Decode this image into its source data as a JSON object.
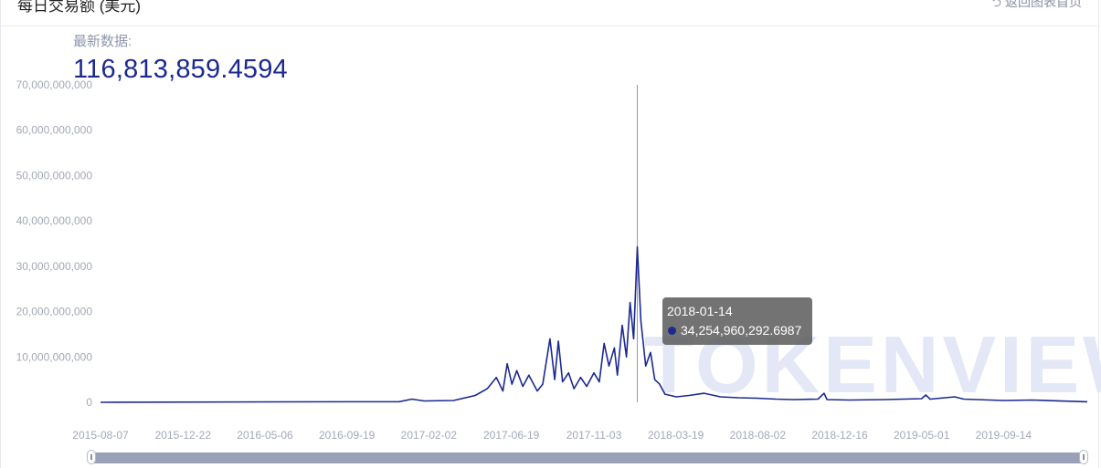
{
  "header": {
    "title": "每日交易额 (美元)",
    "back_label": "返回图表首页",
    "back_icon": "return-arrow-icon"
  },
  "latest": {
    "label": "最新数据:",
    "value": "116,813,859.4594"
  },
  "tooltip": {
    "date": "2018-01-14",
    "value": "34,254,960,292.6987",
    "marker_color": "#1b2a8f"
  },
  "watermark": "TOKENVIEW",
  "colors": {
    "line": "#1b2a8f",
    "tick_text": "#a3a8b8",
    "watermark": "#e3e7f6",
    "slider": "#9aa0b8"
  },
  "slider": {
    "start_fraction": 0,
    "end_fraction": 1
  },
  "chart_data": {
    "type": "line",
    "title": "",
    "xlabel": "",
    "ylabel": "",
    "ylim": [
      0,
      70000000000
    ],
    "xlim": [
      "2015-08-07",
      "2020-01-31"
    ],
    "grid": false,
    "legend": "none",
    "y_ticks": [
      "0",
      "10,000,000,000",
      "20,000,000,000",
      "30,000,000,000",
      "40,000,000,000",
      "50,000,000,000",
      "60,000,000,000",
      "70,000,000,000"
    ],
    "x_ticks": [
      "2015-08-07",
      "2015-12-22",
      "2016-05-06",
      "2016-09-19",
      "2017-02-02",
      "2017-06-19",
      "2017-11-03",
      "2018-03-19",
      "2018-08-02",
      "2018-12-16",
      "2019-05-01",
      "2019-09-14"
    ],
    "series": [
      {
        "points": [
          [
            "2015-08-07",
            0
          ],
          [
            "2016-06-01",
            100000000
          ],
          [
            "2016-12-15",
            150000000
          ],
          [
            "2017-01-05",
            700000000
          ],
          [
            "2017-01-25",
            300000000
          ],
          [
            "2017-03-15",
            400000000
          ],
          [
            "2017-04-20",
            1500000000
          ],
          [
            "2017-05-10",
            3000000000
          ],
          [
            "2017-05-25",
            5500000000
          ],
          [
            "2017-06-05",
            2500000000
          ],
          [
            "2017-06-12",
            8500000000
          ],
          [
            "2017-06-20",
            4000000000
          ],
          [
            "2017-06-28",
            7000000000
          ],
          [
            "2017-07-08",
            3500000000
          ],
          [
            "2017-07-18",
            6000000000
          ],
          [
            "2017-08-01",
            2500000000
          ],
          [
            "2017-08-10",
            4000000000
          ],
          [
            "2017-08-22",
            14000000000
          ],
          [
            "2017-08-30",
            5000000000
          ],
          [
            "2017-09-05",
            13500000000
          ],
          [
            "2017-09-12",
            4500000000
          ],
          [
            "2017-09-22",
            6500000000
          ],
          [
            "2017-10-01",
            3000000000
          ],
          [
            "2017-10-12",
            5500000000
          ],
          [
            "2017-10-22",
            3500000000
          ],
          [
            "2017-11-03",
            6500000000
          ],
          [
            "2017-11-12",
            4500000000
          ],
          [
            "2017-11-20",
            13000000000
          ],
          [
            "2017-11-28",
            8000000000
          ],
          [
            "2017-12-07",
            12000000000
          ],
          [
            "2017-12-12",
            6000000000
          ],
          [
            "2017-12-20",
            17000000000
          ],
          [
            "2017-12-27",
            10000000000
          ],
          [
            "2018-01-02",
            22000000000
          ],
          [
            "2018-01-08",
            14000000000
          ],
          [
            "2018-01-14",
            34254960292.6987
          ],
          [
            "2018-01-20",
            18000000000
          ],
          [
            "2018-01-28",
            8000000000
          ],
          [
            "2018-02-05",
            11000000000
          ],
          [
            "2018-02-12",
            5000000000
          ],
          [
            "2018-02-20",
            4000000000
          ],
          [
            "2018-03-01",
            1800000000
          ],
          [
            "2018-03-20",
            1200000000
          ],
          [
            "2018-04-10",
            1500000000
          ],
          [
            "2018-05-05",
            2000000000
          ],
          [
            "2018-06-01",
            1200000000
          ],
          [
            "2018-07-01",
            1000000000
          ],
          [
            "2018-08-01",
            900000000
          ],
          [
            "2018-09-01",
            700000000
          ],
          [
            "2018-10-01",
            600000000
          ],
          [
            "2018-11-10",
            700000000
          ],
          [
            "2018-11-20",
            2000000000
          ],
          [
            "2018-11-25",
            600000000
          ],
          [
            "2019-01-01",
            500000000
          ],
          [
            "2019-03-01",
            600000000
          ],
          [
            "2019-05-01",
            800000000
          ],
          [
            "2019-05-08",
            1600000000
          ],
          [
            "2019-05-15",
            700000000
          ],
          [
            "2019-06-25",
            1200000000
          ],
          [
            "2019-07-10",
            700000000
          ],
          [
            "2019-09-14",
            400000000
          ],
          [
            "2019-11-01",
            500000000
          ],
          [
            "2020-01-31",
            116813859.4594
          ]
        ]
      }
    ]
  }
}
